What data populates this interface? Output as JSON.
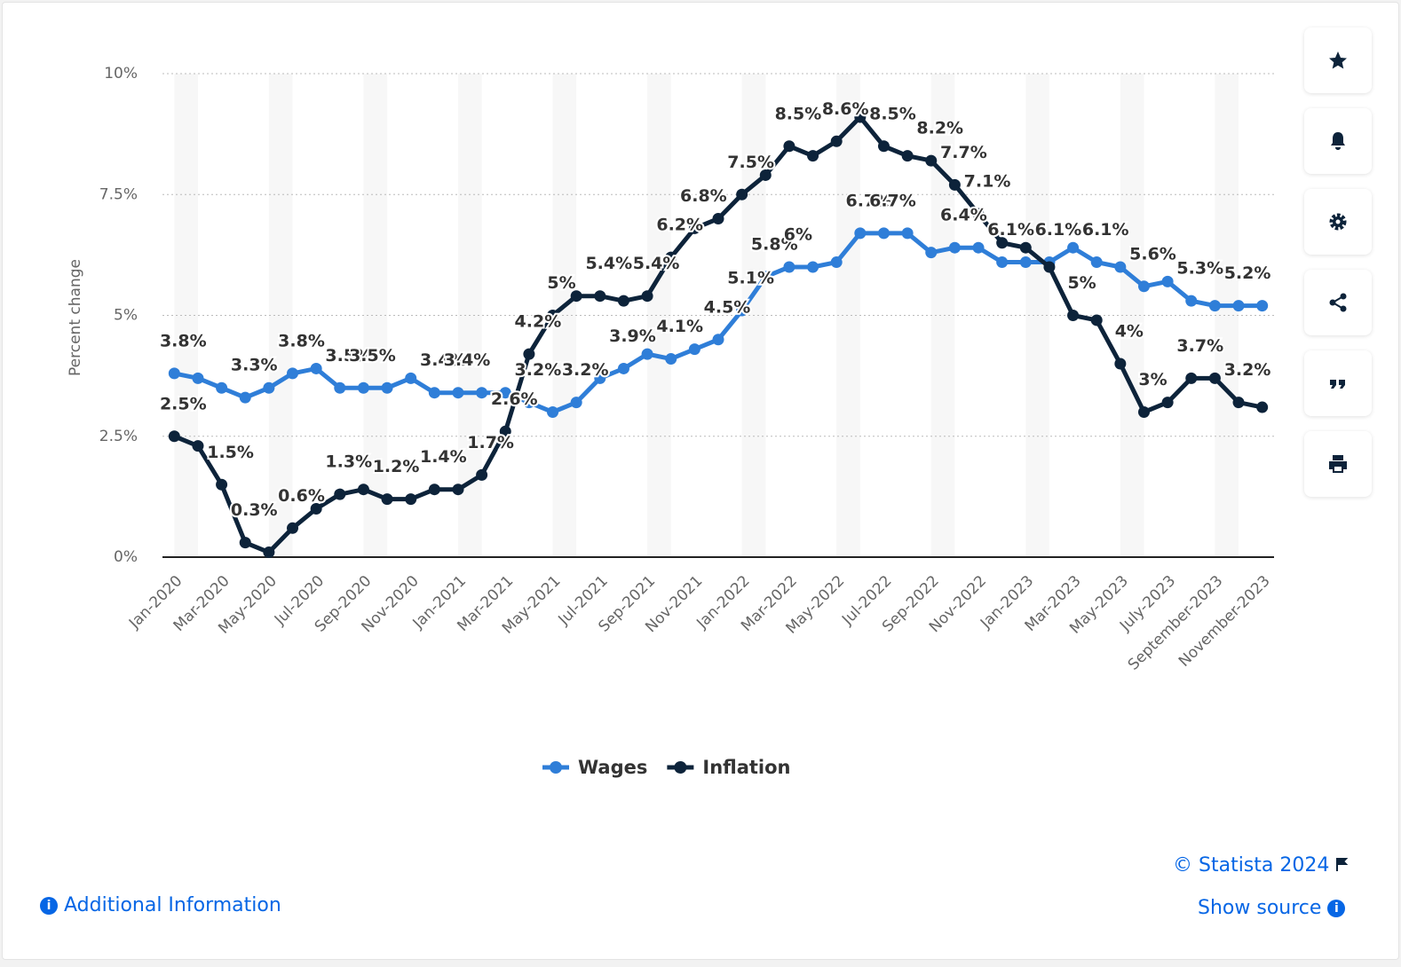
{
  "chart_data": {
    "type": "line",
    "y_label": "Percent change",
    "categories": [
      "Jan-2020",
      null,
      "Mar-2020",
      null,
      "May-2020",
      null,
      "Jul-2020",
      null,
      "Sep-2020",
      null,
      "Nov-2020",
      null,
      "Jan-2021",
      null,
      "Mar-2021",
      null,
      "May-2021",
      null,
      "Jul-2021",
      null,
      "Sep-2021",
      null,
      "Nov-2021",
      null,
      "Jan-2022",
      null,
      "Mar-2022",
      null,
      "May-2022",
      null,
      "Jul-2022",
      null,
      "Sep-2022",
      null,
      "Nov-2022",
      null,
      "Jan-2023",
      null,
      "Mar-2023",
      null,
      "May-2023",
      null,
      "July-2023",
      null,
      "September-2023",
      null,
      "November-2023"
    ],
    "series": [
      {
        "name": "Wages",
        "color": "#2f7ed8",
        "values": [
          3.8,
          3.7,
          3.5,
          3.3,
          3.5,
          3.8,
          3.9,
          3.5,
          3.5,
          3.5,
          3.7,
          3.4,
          3.4,
          3.4,
          3.4,
          3.2,
          3.0,
          3.2,
          3.7,
          3.9,
          4.2,
          4.1,
          4.3,
          4.5,
          5.1,
          5.8,
          6.0,
          6.0,
          6.1,
          6.7,
          6.7,
          6.7,
          6.3,
          6.4,
          6.4,
          6.1,
          6.1,
          6.1,
          6.4,
          6.1,
          6.0,
          5.6,
          5.7,
          5.3,
          5.2,
          5.2,
          5.2
        ],
        "value_labels": [
          "3.8%",
          null,
          null,
          "3.3%",
          null,
          "3.8%",
          null,
          "3.5%",
          "3.5%",
          null,
          null,
          "3.4%",
          "3.4%",
          null,
          null,
          "3.2%",
          null,
          "3.2%",
          null,
          "3.9%",
          null,
          "4.1%",
          null,
          "4.5%",
          "5.1%",
          "5.8%",
          "6%",
          null,
          null,
          "6.7%",
          "6.7%",
          null,
          null,
          "6.4%",
          null,
          "6.1%",
          null,
          "6.1%",
          null,
          "6.1%",
          null,
          "5.6%",
          null,
          "5.3%",
          null,
          "5.2%",
          null
        ]
      },
      {
        "name": "Inflation",
        "color": "#0d233a",
        "values": [
          2.5,
          2.3,
          1.5,
          0.3,
          0.1,
          0.6,
          1.0,
          1.3,
          1.4,
          1.2,
          1.2,
          1.4,
          1.4,
          1.7,
          2.6,
          4.2,
          5.0,
          5.4,
          5.4,
          5.3,
          5.4,
          6.2,
          6.8,
          7.0,
          7.5,
          7.9,
          8.5,
          8.3,
          8.6,
          9.1,
          8.5,
          8.3,
          8.2,
          7.7,
          7.1,
          6.5,
          6.4,
          6.0,
          5.0,
          4.9,
          4.0,
          3.0,
          3.2,
          3.7,
          3.7,
          3.2,
          3.1
        ],
        "value_labels": [
          "2.5%",
          null,
          "1.5%",
          "0.3%",
          null,
          "0.6%",
          null,
          "1.3%",
          null,
          "1.2%",
          null,
          "1.4%",
          null,
          "1.7%",
          "2.6%",
          "4.2%",
          "5%",
          null,
          "5.4%",
          null,
          "5.4%",
          "6.2%",
          "6.8%",
          null,
          "7.5%",
          null,
          "8.5%",
          null,
          "8.6%",
          null,
          "8.5%",
          null,
          "8.2%",
          "7.7%",
          "7.1%",
          null,
          null,
          null,
          "5%",
          null,
          "4%",
          "3%",
          null,
          "3.7%",
          null,
          "3.2%",
          null
        ]
      }
    ],
    "ylim": [
      0,
      10
    ],
    "yticks": [
      {
        "value": 0,
        "label": "0%"
      },
      {
        "value": 2.5,
        "label": "2.5%"
      },
      {
        "value": 5,
        "label": "5%"
      },
      {
        "value": 7.5,
        "label": "7.5%"
      },
      {
        "value": 10,
        "label": "10%"
      }
    ],
    "grid": true,
    "legend": "bottom"
  },
  "footer": {
    "copyright": "© Statista 2024",
    "source": "Show source",
    "info": "Additional Information"
  }
}
